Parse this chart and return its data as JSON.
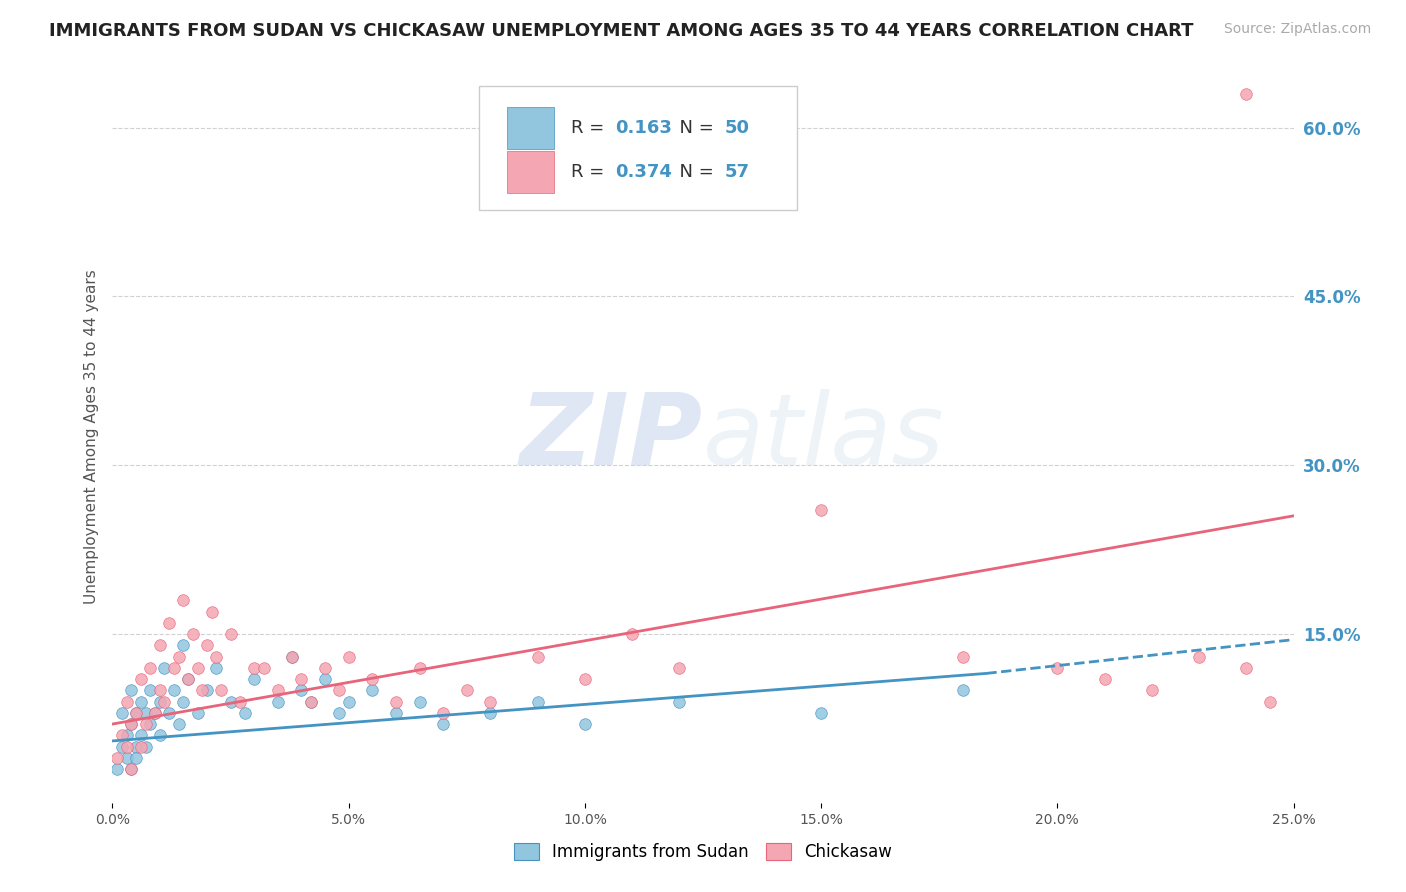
{
  "title": "IMMIGRANTS FROM SUDAN VS CHICKASAW UNEMPLOYMENT AMONG AGES 35 TO 44 YEARS CORRELATION CHART",
  "source": "Source: ZipAtlas.com",
  "ylabel": "Unemployment Among Ages 35 to 44 years",
  "xlim": [
    0.0,
    0.25
  ],
  "ylim": [
    0.0,
    0.65
  ],
  "xticks": [
    0.0,
    0.05,
    0.1,
    0.15,
    0.2,
    0.25
  ],
  "xticklabels": [
    "0.0%",
    "5.0%",
    "10.0%",
    "15.0%",
    "20.0%",
    "25.0%"
  ],
  "yticks_right": [
    0.15,
    0.3,
    0.45,
    0.6
  ],
  "ytick_labels_right": [
    "15.0%",
    "30.0%",
    "45.0%",
    "60.0%"
  ],
  "legend_label1": "Immigrants from Sudan",
  "legend_label2": "Chickasaw",
  "R1": "0.163",
  "N1": "50",
  "R2": "0.374",
  "N2": "57",
  "color1": "#92c5de",
  "color2": "#f4a6b2",
  "trendline1_color": "#4393c3",
  "trendline2_color": "#e8647a",
  "background_color": "#ffffff",
  "grid_color": "#cccccc",
  "watermark_zip": "ZIP",
  "watermark_atlas": "atlas",
  "title_fontsize": 13,
  "source_fontsize": 10,
  "axis_label_fontsize": 11,
  "tick_label_fontsize": 10,
  "legend_fontsize": 13,
  "scatter1_x": [
    0.001,
    0.002,
    0.002,
    0.003,
    0.003,
    0.004,
    0.004,
    0.004,
    0.005,
    0.005,
    0.005,
    0.006,
    0.006,
    0.007,
    0.007,
    0.008,
    0.008,
    0.009,
    0.01,
    0.01,
    0.011,
    0.012,
    0.013,
    0.014,
    0.015,
    0.015,
    0.016,
    0.018,
    0.02,
    0.022,
    0.025,
    0.028,
    0.03,
    0.035,
    0.038,
    0.04,
    0.042,
    0.045,
    0.048,
    0.05,
    0.055,
    0.06,
    0.065,
    0.07,
    0.08,
    0.09,
    0.1,
    0.12,
    0.15,
    0.18
  ],
  "scatter1_y": [
    0.03,
    0.05,
    0.08,
    0.04,
    0.06,
    0.03,
    0.07,
    0.1,
    0.05,
    0.04,
    0.08,
    0.06,
    0.09,
    0.05,
    0.08,
    0.07,
    0.1,
    0.08,
    0.06,
    0.09,
    0.12,
    0.08,
    0.1,
    0.07,
    0.09,
    0.14,
    0.11,
    0.08,
    0.1,
    0.12,
    0.09,
    0.08,
    0.11,
    0.09,
    0.13,
    0.1,
    0.09,
    0.11,
    0.08,
    0.09,
    0.1,
    0.08,
    0.09,
    0.07,
    0.08,
    0.09,
    0.07,
    0.09,
    0.08,
    0.1
  ],
  "scatter2_x": [
    0.001,
    0.002,
    0.003,
    0.003,
    0.004,
    0.004,
    0.005,
    0.006,
    0.006,
    0.007,
    0.008,
    0.009,
    0.01,
    0.01,
    0.011,
    0.012,
    0.013,
    0.014,
    0.015,
    0.016,
    0.017,
    0.018,
    0.019,
    0.02,
    0.021,
    0.022,
    0.023,
    0.025,
    0.027,
    0.03,
    0.032,
    0.035,
    0.038,
    0.04,
    0.042,
    0.045,
    0.048,
    0.05,
    0.055,
    0.06,
    0.065,
    0.07,
    0.075,
    0.08,
    0.09,
    0.1,
    0.11,
    0.12,
    0.15,
    0.18,
    0.2,
    0.21,
    0.22,
    0.23,
    0.24,
    0.24,
    0.245
  ],
  "scatter2_y": [
    0.04,
    0.06,
    0.05,
    0.09,
    0.07,
    0.03,
    0.08,
    0.05,
    0.11,
    0.07,
    0.12,
    0.08,
    0.1,
    0.14,
    0.09,
    0.16,
    0.12,
    0.13,
    0.18,
    0.11,
    0.15,
    0.12,
    0.1,
    0.14,
    0.17,
    0.13,
    0.1,
    0.15,
    0.09,
    0.12,
    0.12,
    0.1,
    0.13,
    0.11,
    0.09,
    0.12,
    0.1,
    0.13,
    0.11,
    0.09,
    0.12,
    0.08,
    0.1,
    0.09,
    0.13,
    0.11,
    0.15,
    0.12,
    0.26,
    0.13,
    0.12,
    0.11,
    0.1,
    0.13,
    0.63,
    0.12,
    0.09
  ],
  "trend1_x_start": 0.0,
  "trend1_x_end": 0.185,
  "trend1_y_start": 0.055,
  "trend1_y_end": 0.115,
  "trend1_x_dash_start": 0.185,
  "trend1_x_dash_end": 0.25,
  "trend1_y_dash_start": 0.115,
  "trend1_y_dash_end": 0.145,
  "trend2_x_start": 0.0,
  "trend2_x_end": 0.25,
  "trend2_y_start": 0.07,
  "trend2_y_end": 0.255
}
